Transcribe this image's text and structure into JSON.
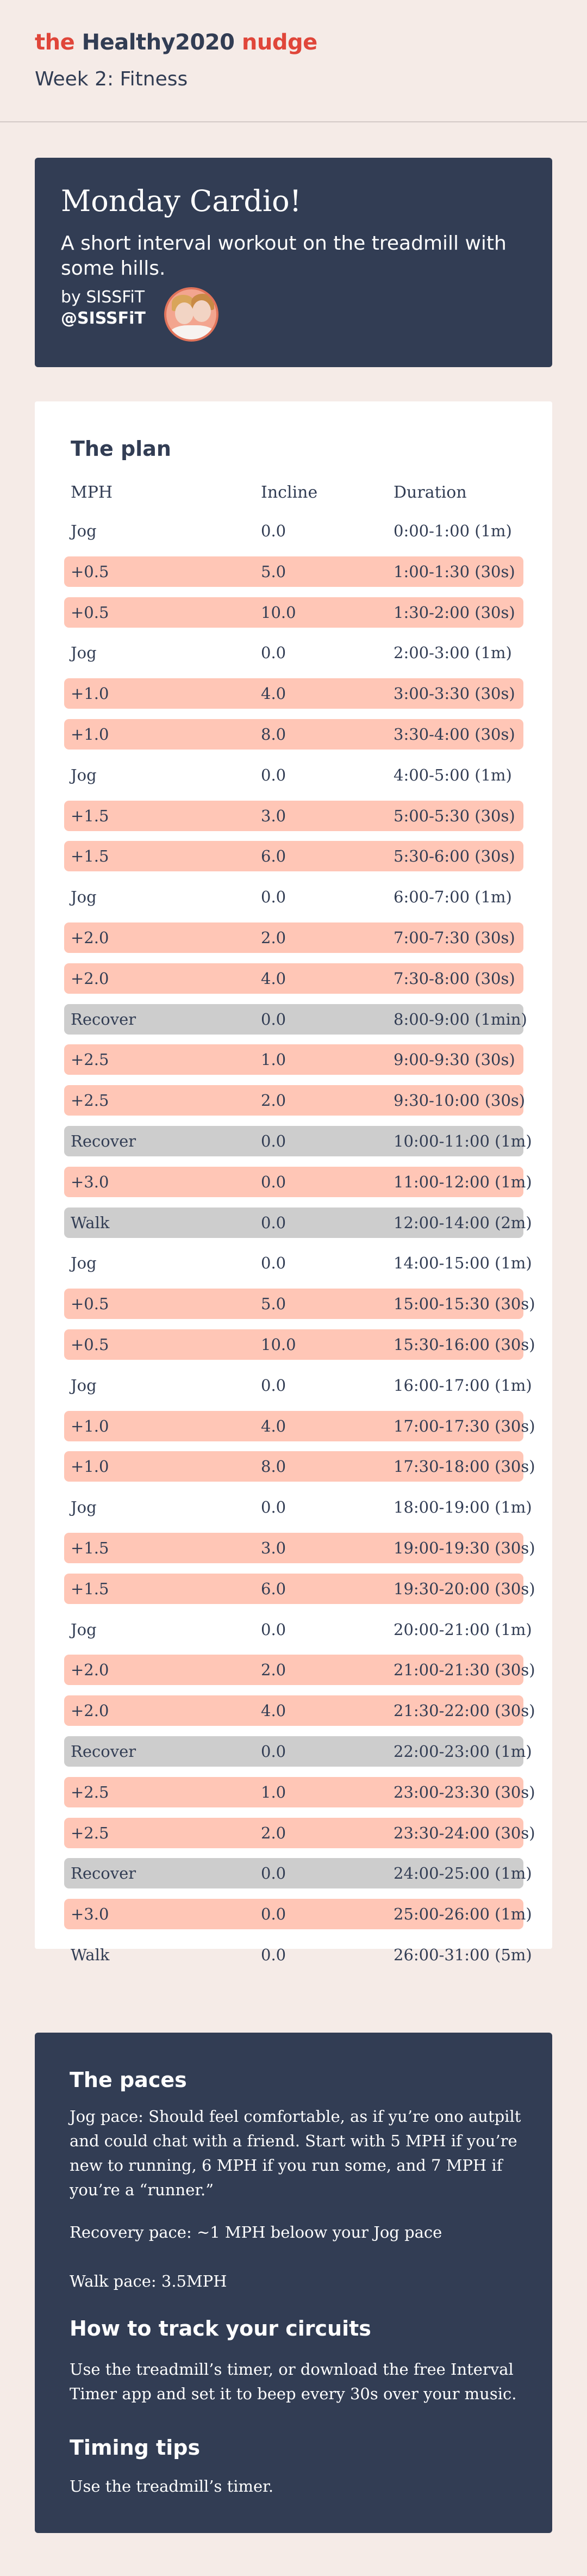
{
  "header": {
    "brand_the": "the",
    "brand_healthy": "Healthy2020",
    "brand_nudge": "nudge",
    "week": "Week 2: Fitness"
  },
  "hero": {
    "title": "Monday Cardio!",
    "subtitle": "A short interval workout on the treadmill with some hills.",
    "by": "by SISSFiT",
    "handle": "@SISSFiT"
  },
  "plan": {
    "title": "The plan",
    "col_mph": "MPH",
    "col_incline": "Incline",
    "col_duration": "Duration",
    "rows": [
      {
        "mph": "Jog",
        "incline": "0.0",
        "duration": "0:00-1:00 (1m)",
        "style": "plain"
      },
      {
        "mph": "+0.5",
        "incline": "5.0",
        "duration": "1:00-1:30 (30s)",
        "style": "hl"
      },
      {
        "mph": "+0.5",
        "incline": "10.0",
        "duration": "1:30-2:00 (30s)",
        "style": "hl"
      },
      {
        "mph": "Jog",
        "incline": "0.0",
        "duration": "2:00-3:00 (1m)",
        "style": "plain"
      },
      {
        "mph": "+1.0",
        "incline": "4.0",
        "duration": "3:00-3:30 (30s)",
        "style": "hl"
      },
      {
        "mph": "+1.0",
        "incline": "8.0",
        "duration": "3:30-4:00 (30s)",
        "style": "hl"
      },
      {
        "mph": "Jog",
        "incline": "0.0",
        "duration": "4:00-5:00 (1m)",
        "style": "plain"
      },
      {
        "mph": "+1.5",
        "incline": "3.0",
        "duration": "5:00-5:30 (30s)",
        "style": "hl"
      },
      {
        "mph": "+1.5",
        "incline": "6.0",
        "duration": "5:30-6:00 (30s)",
        "style": "hl"
      },
      {
        "mph": "Jog",
        "incline": "0.0",
        "duration": "6:00-7:00 (1m)",
        "style": "plain"
      },
      {
        "mph": "+2.0",
        "incline": "2.0",
        "duration": "7:00-7:30 (30s)",
        "style": "hl"
      },
      {
        "mph": "+2.0",
        "incline": "4.0",
        "duration": "7:30-8:00 (30s)",
        "style": "hl"
      },
      {
        "mph": "Recover",
        "incline": "0.0",
        "duration": "8:00-9:00 (1min)",
        "style": "rc"
      },
      {
        "mph": "+2.5",
        "incline": "1.0",
        "duration": "9:00-9:30 (30s)",
        "style": "hl"
      },
      {
        "mph": "+2.5",
        "incline": "2.0",
        "duration": "9:30-10:00 (30s)",
        "style": "hl"
      },
      {
        "mph": "Recover",
        "incline": "0.0",
        "duration": "10:00-11:00 (1m)",
        "style": "rc"
      },
      {
        "mph": "+3.0",
        "incline": "0.0",
        "duration": "11:00-12:00 (1m)",
        "style": "hl"
      },
      {
        "mph": "Walk",
        "incline": "0.0",
        "duration": "12:00-14:00 (2m)",
        "style": "rc"
      },
      {
        "mph": "Jog",
        "incline": "0.0",
        "duration": "14:00-15:00 (1m)",
        "style": "plain"
      },
      {
        "mph": "+0.5",
        "incline": "5.0",
        "duration": "15:00-15:30 (30s)",
        "style": "hl"
      },
      {
        "mph": "+0.5",
        "incline": "10.0",
        "duration": "15:30-16:00 (30s)",
        "style": "hl"
      },
      {
        "mph": "Jog",
        "incline": "0.0",
        "duration": "16:00-17:00 (1m)",
        "style": "plain"
      },
      {
        "mph": "+1.0",
        "incline": "4.0",
        "duration": "17:00-17:30 (30s)",
        "style": "hl"
      },
      {
        "mph": "+1.0",
        "incline": "8.0",
        "duration": "17:30-18:00 (30s)",
        "style": "hl"
      },
      {
        "mph": "Jog",
        "incline": "0.0",
        "duration": "18:00-19:00 (1m)",
        "style": "plain"
      },
      {
        "mph": "+1.5",
        "incline": "3.0",
        "duration": "19:00-19:30 (30s)",
        "style": "hl"
      },
      {
        "mph": "+1.5",
        "incline": "6.0",
        "duration": "19:30-20:00 (30s)",
        "style": "hl"
      },
      {
        "mph": "Jog",
        "incline": "0.0",
        "duration": "20:00-21:00 (1m)",
        "style": "plain"
      },
      {
        "mph": "+2.0",
        "incline": "2.0",
        "duration": "21:00-21:30 (30s)",
        "style": "hl"
      },
      {
        "mph": "+2.0",
        "incline": "4.0",
        "duration": "21:30-22:00 (30s)",
        "style": "hl"
      },
      {
        "mph": "Recover",
        "incline": "0.0",
        "duration": "22:00-23:00 (1m)",
        "style": "rc"
      },
      {
        "mph": "+2.5",
        "incline": "1.0",
        "duration": "23:00-23:30 (30s)",
        "style": "hl"
      },
      {
        "mph": "+2.5",
        "incline": "2.0",
        "duration": "23:30-24:00 (30s)",
        "style": "hl"
      },
      {
        "mph": "Recover",
        "incline": "0.0",
        "duration": "24:00-25:00 (1m)",
        "style": "rc"
      },
      {
        "mph": "+3.0",
        "incline": "0.0",
        "duration": "25:00-26:00 (1m)",
        "style": "hl"
      },
      {
        "mph": "Walk",
        "incline": "0.0",
        "duration": "26:00-31:00 (5m)",
        "style": "plain"
      }
    ]
  },
  "tips": {
    "paces_title": "The paces",
    "jog_pace": "Jog pace: Should feel comfortable, as if yu’re ono autpilt and could chat with a friend. Start with 5 MPH if you’re new to running, 6 MPH if you run some, and 7 MPH if you’re a “runner.”",
    "recovery_pace": "Recovery pace: ~1 MPH beloow your Jog pace",
    "walk_pace": "Walk pace: 3.5MPH",
    "track_title": "How to track your circuits",
    "track_text": "Use the treadmill’s timer, or download the free Interval Timer app and set it to beep every 30s over your music.",
    "timing_title": "Timing tips",
    "timing_text": "Use the treadmill’s timer."
  },
  "colors": {
    "background": "#f5ebe7",
    "navy": "#323d54",
    "brand_red": "#e0463a",
    "highlight": "#ffc6b6",
    "recover": "#cdcdcd"
  }
}
